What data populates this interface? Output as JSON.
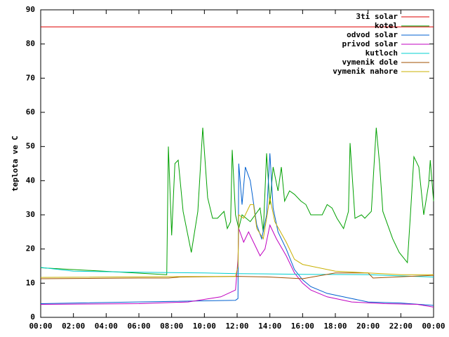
{
  "chart_data": {
    "type": "line",
    "y_label": "teplota ve C",
    "xlim": [
      0,
      24
    ],
    "xticks": [
      {
        "value": 0,
        "label": "00:00"
      },
      {
        "value": 2,
        "label": "02:00"
      },
      {
        "value": 4,
        "label": "04:00"
      },
      {
        "value": 6,
        "label": "06:00"
      },
      {
        "value": 8,
        "label": "08:00"
      },
      {
        "value": 10,
        "label": "10:00"
      },
      {
        "value": 12,
        "label": "12:00"
      },
      {
        "value": 14,
        "label": "14:00"
      },
      {
        "value": 16,
        "label": "16:00"
      },
      {
        "value": 18,
        "label": "18:00"
      },
      {
        "value": 20,
        "label": "20:00"
      },
      {
        "value": 22,
        "label": "22:00"
      },
      {
        "value": 24,
        "label": "00:00"
      }
    ],
    "ylim": [
      0,
      90
    ],
    "yticks": [
      0,
      10,
      20,
      30,
      40,
      50,
      60,
      70,
      80,
      90
    ],
    "legend": "top-right",
    "series": [
      {
        "name": "3ti solar",
        "color": "#dd0000",
        "x": [
          0,
          24
        ],
        "values": [
          85,
          85
        ]
      },
      {
        "name": "kotel",
        "color": "#00a000",
        "x": [
          0,
          7.7,
          7.8,
          8.0,
          8.2,
          8.4,
          8.7,
          9.2,
          9.6,
          9.9,
          10.2,
          10.5,
          10.8,
          11.2,
          11.4,
          11.6,
          11.7,
          11.9,
          12.1,
          12.3,
          12.8,
          13.4,
          13.6,
          13.8,
          14.0,
          14.2,
          14.5,
          14.7,
          14.9,
          15.2,
          15.5,
          15.9,
          16.2,
          16.5,
          17.2,
          17.5,
          17.8,
          18.1,
          18.5,
          18.8,
          18.9,
          19.2,
          19.6,
          19.8,
          20.2,
          20.5,
          20.7,
          20.9,
          21.5,
          21.9,
          22.4,
          22.6,
          22.8,
          23.1,
          23.4,
          23.7,
          23.8,
          24
        ],
        "values": [
          14.5,
          12.5,
          50,
          24,
          45,
          46,
          31,
          19,
          31,
          55.5,
          35,
          29,
          29,
          31,
          26,
          28,
          49,
          30,
          26,
          30,
          28,
          32,
          25,
          48,
          33,
          44,
          37,
          44,
          34,
          37,
          36,
          34,
          33,
          30,
          30,
          33,
          32,
          29,
          26,
          31,
          51,
          29,
          30,
          29,
          31,
          55.5,
          45,
          31,
          23,
          19,
          16,
          31,
          47,
          44,
          30,
          39,
          46,
          34
        ]
      },
      {
        "name": "odvod solar",
        "color": "#0060d0",
        "x": [
          0,
          11.9,
          12.05,
          12.1,
          12.3,
          12.5,
          12.8,
          13.2,
          13.5,
          13.8,
          14.0,
          14.2,
          14.5,
          15.0,
          15.5,
          16.0,
          16.5,
          17.5,
          19,
          20,
          22,
          24
        ],
        "values": [
          4,
          5,
          5.5,
          45,
          33,
          44,
          40,
          27,
          23,
          30,
          48,
          32,
          25,
          20,
          14,
          11,
          9,
          7,
          5.5,
          4.5,
          4.2,
          3.5
        ]
      },
      {
        "name": "privod solar",
        "color": "#c000c0",
        "x": [
          0,
          6,
          9,
          11,
          11.9,
          12.05,
          12.1,
          12.4,
          12.7,
          13,
          13.4,
          13.7,
          14,
          14.4,
          15,
          15.5,
          16,
          16.5,
          17.5,
          19,
          21,
          23,
          24
        ],
        "values": [
          3.8,
          4,
          4.5,
          6,
          8,
          17,
          26,
          22,
          25,
          22,
          18,
          20,
          27,
          23,
          18,
          13,
          10,
          8,
          6,
          4.5,
          4,
          3.8,
          3
        ]
      },
      {
        "name": "kutloch",
        "color": "#00d0d0",
        "x": [
          0,
          2,
          6,
          10,
          12,
          16,
          20,
          24
        ],
        "values": [
          14.6,
          13.5,
          13.2,
          13,
          12.8,
          12.6,
          12.5,
          11.8
        ]
      },
      {
        "name": "vymenik dole",
        "color": "#a05000",
        "x": [
          0,
          6,
          7.8,
          8.5,
          12,
          14,
          16,
          18,
          20,
          20.3,
          24
        ],
        "values": [
          11.3,
          11.5,
          11.5,
          11.8,
          12,
          11.8,
          11.3,
          13,
          13,
          11.5,
          12.3
        ]
      },
      {
        "name": "vymenik nahore",
        "color": "#c8b000",
        "x": [
          0,
          11.9,
          12.05,
          12.1,
          12.4,
          12.8,
          13.0,
          13.2,
          13.6,
          14.0,
          14.3,
          15,
          15.5,
          16,
          18,
          20,
          22,
          24
        ],
        "values": [
          11.7,
          12,
          15,
          30,
          29,
          33,
          33,
          26,
          23,
          35,
          28,
          22,
          17,
          15.5,
          13.5,
          13,
          12.5,
          12.5
        ]
      }
    ]
  }
}
